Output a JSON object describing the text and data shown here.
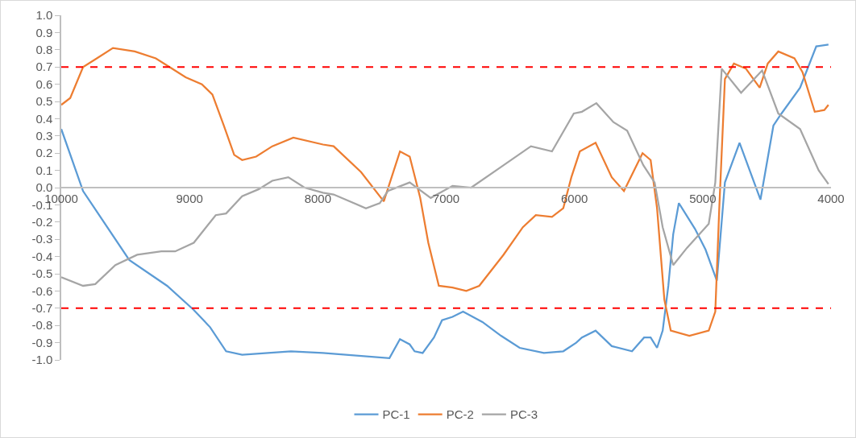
{
  "chart_data": {
    "type": "line",
    "xlim": [
      10000,
      4000
    ],
    "xticks": [
      10000,
      9000,
      8000,
      7000,
      6000,
      5000,
      4000
    ],
    "ylim": [
      -1,
      1
    ],
    "yticks": [
      {
        "value": -1,
        "label": "-1.0"
      },
      {
        "value": -0.9,
        "label": "-0.9"
      },
      {
        "value": -0.8,
        "label": "-0.8"
      },
      {
        "value": -0.7,
        "label": "-0.7"
      },
      {
        "value": -0.6,
        "label": "-0.6"
      },
      {
        "value": -0.5,
        "label": "-0.5"
      },
      {
        "value": -0.4,
        "label": "-0.4"
      },
      {
        "value": -0.3,
        "label": "-0.3"
      },
      {
        "value": -0.2,
        "label": "-0.2"
      },
      {
        "value": -0.1,
        "label": "-0.1"
      },
      {
        "value": 0,
        "label": "0.0"
      },
      {
        "value": 0.1,
        "label": "0.1"
      },
      {
        "value": 0.2,
        "label": "0.2"
      },
      {
        "value": 0.3,
        "label": "0.3"
      },
      {
        "value": 0.4,
        "label": "0.4"
      },
      {
        "value": 0.5,
        "label": "0.5"
      },
      {
        "value": 0.6,
        "label": "0.6"
      },
      {
        "value": 0.7,
        "label": "0.7"
      },
      {
        "value": 0.8,
        "label": "0.8"
      },
      {
        "value": 0.9,
        "label": "0.9"
      },
      {
        "value": 1,
        "label": "1.0"
      }
    ],
    "grid": false,
    "legend": "bottom",
    "marker": "none",
    "line_style": "solid",
    "ref_lines": [
      {
        "axis": "y",
        "value": 0.7,
        "color": "#ff0000",
        "line_style": "dashed"
      },
      {
        "axis": "y",
        "value": -0.7,
        "color": "#ff0000",
        "line_style": "dashed"
      }
    ],
    "series": [
      {
        "name": "PC-1",
        "color": "#5b9bd5",
        "x": [
          10000,
          9830,
          9470,
          9175,
          8967,
          8840,
          8715,
          8590,
          8210,
          7960,
          7442,
          7360,
          7284,
          7246,
          7183,
          7095,
          7032,
          6950,
          6868,
          6717,
          6572,
          6427,
          6238,
          6087,
          5986,
          5942,
          5835,
          5709,
          5551,
          5457,
          5406,
          5356,
          5312,
          5268,
          5230,
          5186,
          5060,
          4978,
          4890,
          4827,
          4713,
          4550,
          4449,
          4386,
          4241,
          4115,
          4020
        ],
        "values": [
          0.34,
          -0.02,
          -0.42,
          -0.57,
          -0.71,
          -0.81,
          -0.95,
          -0.97,
          -0.95,
          -0.96,
          -0.99,
          -0.88,
          -0.91,
          -0.95,
          -0.96,
          -0.87,
          -0.77,
          -0.75,
          -0.72,
          -0.78,
          -0.86,
          -0.93,
          -0.96,
          -0.95,
          -0.9,
          -0.87,
          -0.83,
          -0.92,
          -0.95,
          -0.87,
          -0.87,
          -0.93,
          -0.83,
          -0.57,
          -0.27,
          -0.09,
          -0.24,
          -0.36,
          -0.54,
          0.03,
          0.26,
          -0.07,
          0.36,
          0.43,
          0.58,
          0.82,
          0.83
        ]
      },
      {
        "name": "PC-2",
        "color": "#ed7d31",
        "x": [
          10000,
          9930,
          9830,
          9723,
          9597,
          9427,
          9263,
          9156,
          9030,
          8904,
          8822,
          8733,
          8652,
          8590,
          8481,
          8355,
          8191,
          7960,
          7877,
          7663,
          7486,
          7360,
          7284,
          7202,
          7139,
          7057,
          6950,
          6843,
          6742,
          6553,
          6402,
          6301,
          6175,
          6087,
          6024,
          5958,
          5835,
          5709,
          5614,
          5469,
          5406,
          5356,
          5299,
          5249,
          5104,
          4953,
          4902,
          4871,
          4827,
          4757,
          4663,
          4556,
          4493,
          4411,
          4285,
          4222,
          4127,
          4052,
          4020
        ],
        "values": [
          0.48,
          0.52,
          0.7,
          0.75,
          0.81,
          0.79,
          0.75,
          0.7,
          0.64,
          0.6,
          0.54,
          0.36,
          0.19,
          0.16,
          0.18,
          0.24,
          0.29,
          0.25,
          0.24,
          0.09,
          -0.08,
          0.21,
          0.18,
          -0.06,
          -0.32,
          -0.57,
          -0.58,
          -0.6,
          -0.57,
          -0.39,
          -0.23,
          -0.16,
          -0.17,
          -0.12,
          0.06,
          0.21,
          0.26,
          0.06,
          -0.02,
          0.2,
          0.16,
          -0.12,
          -0.65,
          -0.83,
          -0.86,
          -0.83,
          -0.72,
          -0.12,
          0.63,
          0.72,
          0.69,
          0.58,
          0.72,
          0.79,
          0.75,
          0.67,
          0.44,
          0.45,
          0.48
        ]
      },
      {
        "name": "PC-3",
        "color": "#a5a5a5",
        "x": [
          10000,
          9830,
          9735,
          9578,
          9408,
          9219,
          9112,
          8967,
          8796,
          8715,
          8590,
          8463,
          8355,
          8230,
          8104,
          7960,
          7877,
          7625,
          7517,
          7454,
          7284,
          7120,
          6950,
          6805,
          6572,
          6339,
          6175,
          6005,
          5942,
          5829,
          5696,
          5589,
          5463,
          5375,
          5312,
          5230,
          5123,
          4953,
          4902,
          4852,
          4701,
          4537,
          4411,
          4241,
          4096,
          4020
        ],
        "values": [
          -0.52,
          -0.57,
          -0.56,
          -0.45,
          -0.39,
          -0.37,
          -0.37,
          -0.32,
          -0.16,
          -0.15,
          -0.05,
          -0.01,
          0.04,
          0.06,
          0.0,
          -0.03,
          -0.04,
          -0.12,
          -0.09,
          -0.02,
          0.03,
          -0.06,
          0.01,
          0.0,
          0.12,
          0.24,
          0.21,
          0.43,
          0.44,
          0.49,
          0.38,
          0.33,
          0.13,
          0.03,
          -0.23,
          -0.45,
          -0.35,
          -0.21,
          0.03,
          0.69,
          0.55,
          0.68,
          0.43,
          0.34,
          0.1,
          0.02
        ]
      }
    ]
  }
}
